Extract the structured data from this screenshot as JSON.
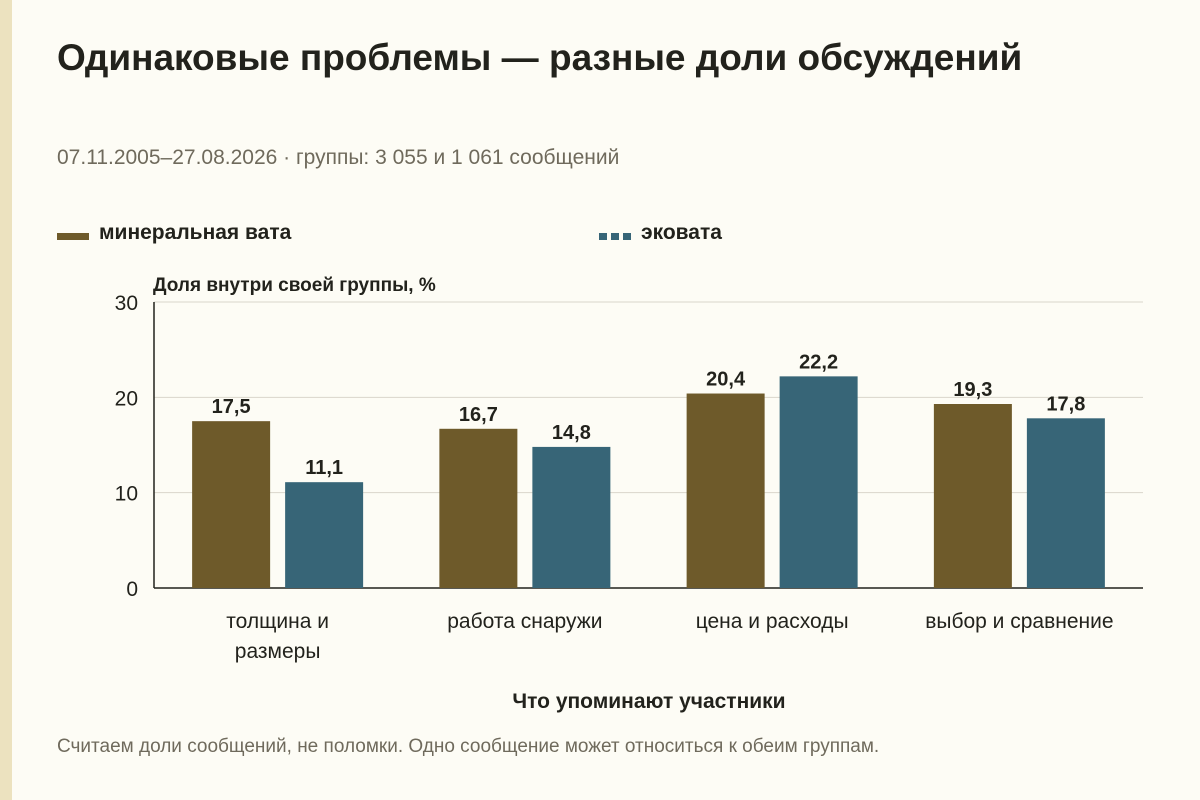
{
  "title": "Одинаковые проблемы — разные доли обсуждений",
  "subtitle": "07.11.2005–27.08.2026 · группы: 3 055 и 1 061 сообщений",
  "footnote": "Считаем доли сообщений, не поломки. Одно сообщение может относиться к обеим группам.",
  "colors": {
    "background": "#fdfcf5",
    "mineral": "#6e5a2a",
    "eco": "#376577",
    "grid": "#d9d6cb",
    "axis": "#22221c"
  },
  "chart_data": {
    "type": "bar",
    "ylabel": "Доля внутри своей группы, %",
    "xlabel": "Что упоминают участники",
    "ylim": [
      0,
      30
    ],
    "yticks": [
      0,
      10,
      20,
      30
    ],
    "grid": true,
    "legend_position": "top",
    "categories": [
      [
        "толщина и",
        "размеры"
      ],
      [
        "работа снаружи"
      ],
      [
        "цена и расходы"
      ],
      [
        "выбор и сравнение"
      ]
    ],
    "series": [
      {
        "name": "минеральная вата",
        "color": "#6e5a2a",
        "values": [
          17.5,
          16.7,
          20.4,
          19.3
        ],
        "labels": [
          "17,5",
          "16,7",
          "20,4",
          "19,3"
        ]
      },
      {
        "name": "эковата",
        "color": "#376577",
        "values": [
          11.1,
          14.8,
          22.2,
          17.8
        ],
        "labels": [
          "11,1",
          "14,8",
          "22,2",
          "17,8"
        ]
      }
    ]
  }
}
